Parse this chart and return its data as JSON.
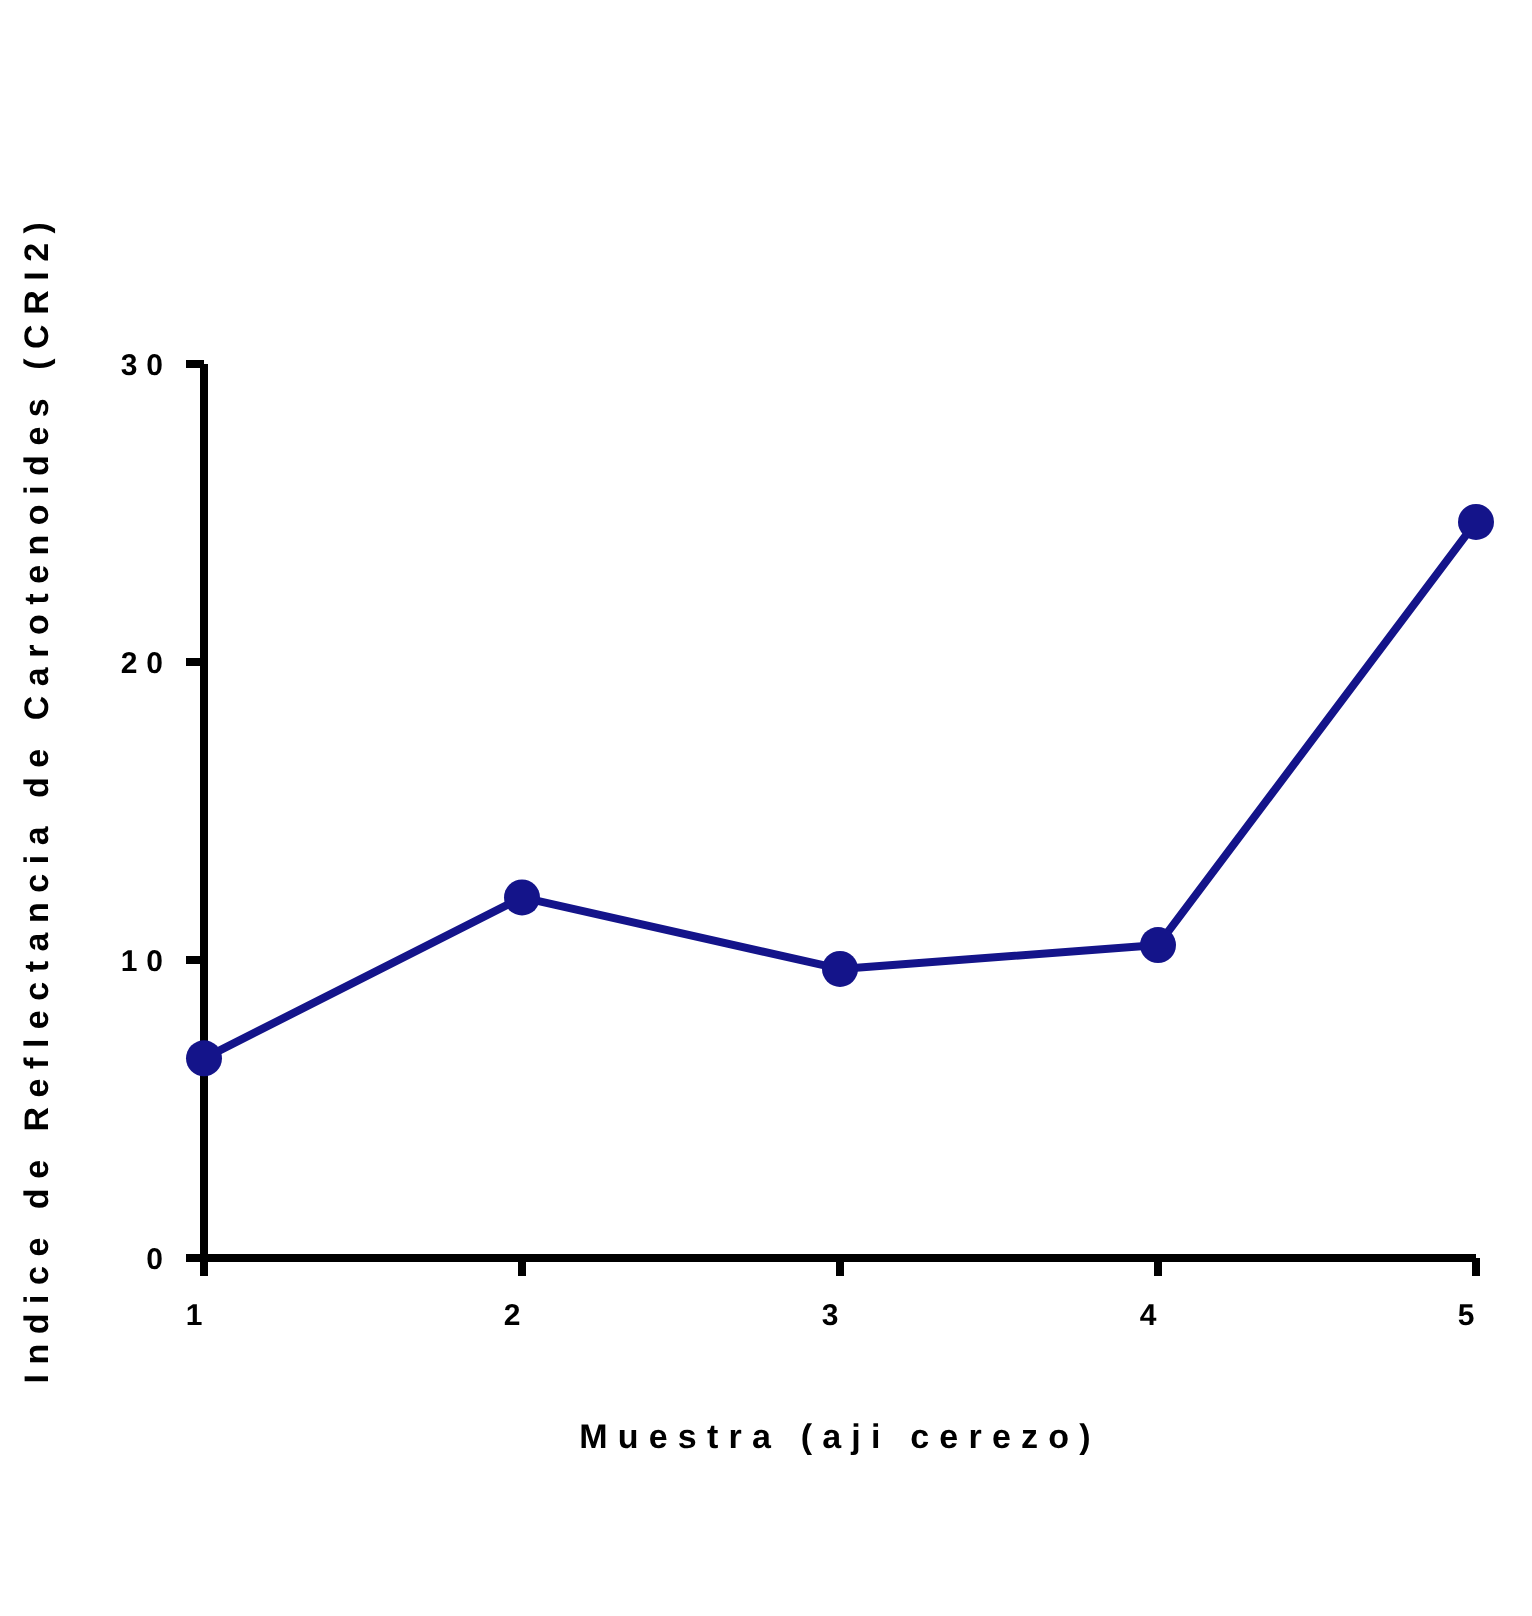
{
  "chart_data": {
    "type": "line",
    "xlabel": "Muestra (aji cerezo)",
    "ylabel": "Indice de Reflectancia de Carotenoides (CRI2)",
    "x": [
      1,
      2,
      3,
      4,
      5
    ],
    "series": [
      {
        "color": "#14148a",
        "values": [
          6.7,
          12.1,
          9.7,
          10.5,
          24.7
        ]
      }
    ],
    "xlim": [
      1,
      5
    ],
    "xticks": [
      1,
      2,
      3,
      4,
      5
    ],
    "ylim": [
      0,
      30
    ],
    "yticks": [
      0,
      10,
      20,
      30
    ],
    "grid": false,
    "marker": "circle",
    "line_style": "solid"
  }
}
